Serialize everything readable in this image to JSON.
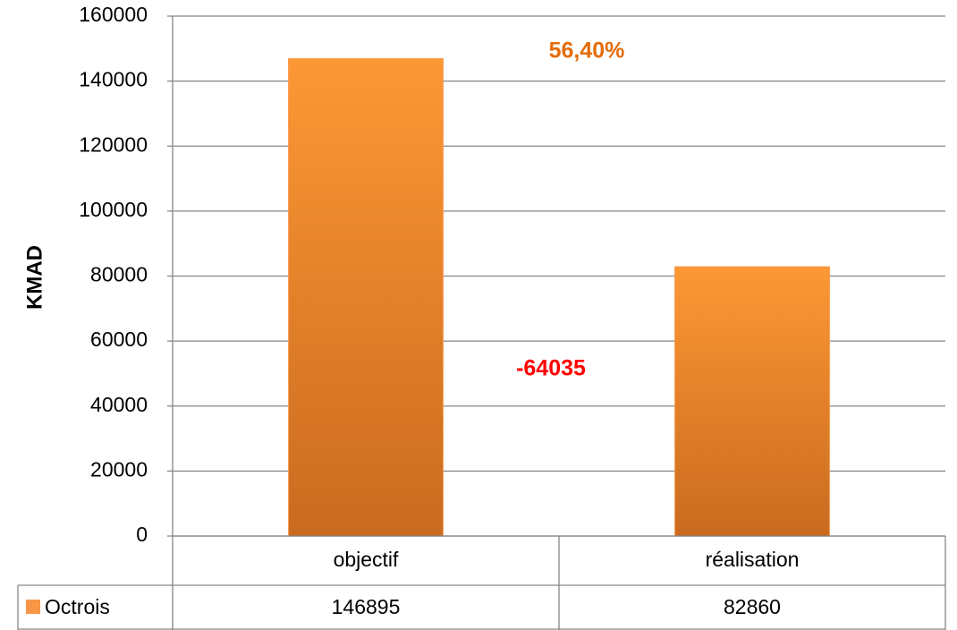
{
  "chart_data": {
    "type": "bar",
    "y_label": "KMAD",
    "categories": [
      "objectif",
      "réalisation"
    ],
    "series": [
      {
        "name": "Octrois",
        "color": "#f79646",
        "values": [
          146895,
          82860
        ]
      }
    ],
    "annotations": [
      "56,40%",
      "-64035"
    ],
    "ylim": [
      0,
      160000
    ],
    "yticks": [
      0,
      20000,
      40000,
      60000,
      80000,
      100000,
      120000,
      140000,
      160000
    ],
    "grid": true,
    "data_table": true
  }
}
